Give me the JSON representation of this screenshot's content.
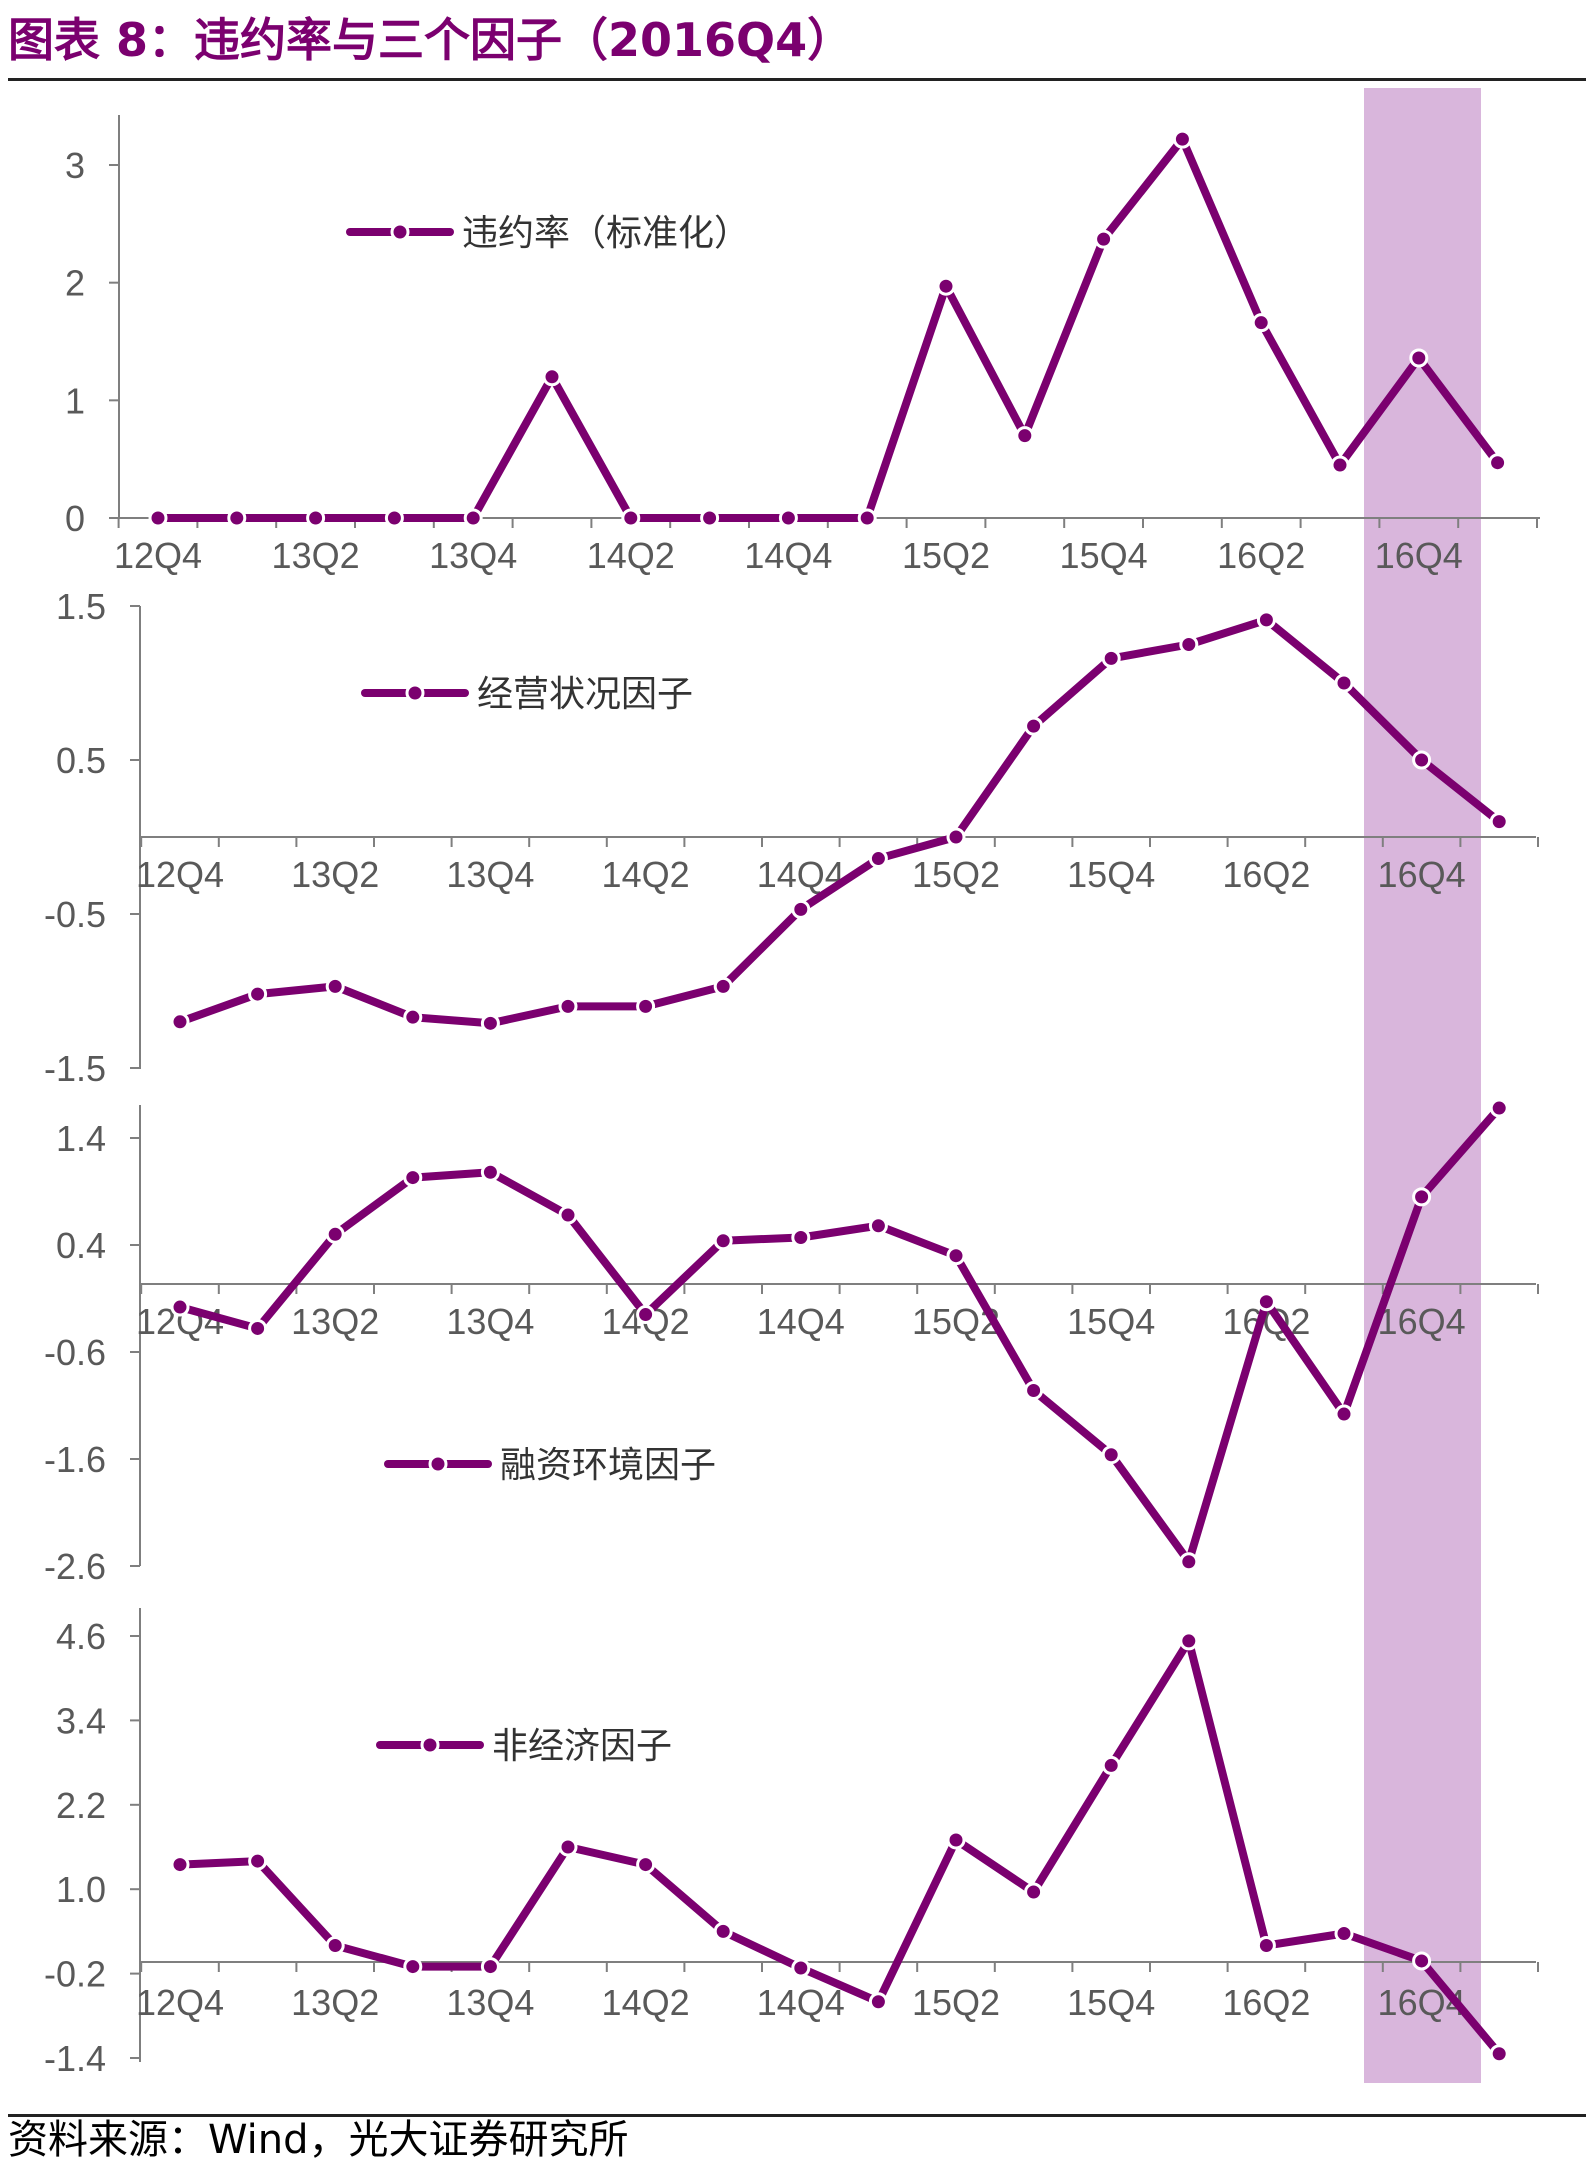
{
  "title": "图表 8：违约率与三个因子（2016Q4）",
  "source": "资料来源：Wind，光大证券研究所",
  "colors": {
    "line": "#7B006F",
    "highlight": "#D9B6DC",
    "axis": "#7f7f7f",
    "title": "#7B006F"
  },
  "chart_data": [
    {
      "type": "line",
      "series": [
        {
          "name": "违约率（标准化）",
          "values": [
            0,
            0,
            0,
            0,
            0,
            1.2,
            0,
            0,
            0,
            0,
            1.97,
            0.7,
            2.37,
            3.22,
            1.66,
            0.45,
            1.36,
            0.47
          ]
        }
      ],
      "x_tick_labels": [
        "12Q4",
        "13Q2",
        "13Q4",
        "14Q2",
        "14Q4",
        "15Q2",
        "15Q4",
        "16Q2",
        "16Q4"
      ],
      "y_ticks": [
        0,
        1,
        2,
        3
      ],
      "ylim": [
        0,
        3.5
      ],
      "highlight": "2016Q4"
    },
    {
      "type": "line",
      "series": [
        {
          "name": "经营状况因子",
          "values": [
            -1.2,
            -1.02,
            -0.97,
            -1.17,
            -1.21,
            -1.1,
            -1.1,
            -0.97,
            -0.47,
            -0.14,
            0,
            0.72,
            1.16,
            1.25,
            1.41,
            1.0,
            0.5,
            0.1
          ]
        }
      ],
      "x_tick_labels": [
        "12Q4",
        "13Q2",
        "13Q4",
        "14Q2",
        "14Q4",
        "15Q2",
        "15Q4",
        "16Q2",
        "16Q4"
      ],
      "y_ticks": [
        1.5,
        0.5,
        -0.5,
        -1.5
      ],
      "ylim": [
        -1.5,
        1.5
      ],
      "highlight": "2016Q4"
    },
    {
      "type": "line",
      "series": [
        {
          "name": "融资环境因子",
          "values": [
            -0.18,
            -0.38,
            0.5,
            1.03,
            1.08,
            0.68,
            -0.25,
            0.44,
            0.47,
            0.58,
            0.3,
            -0.96,
            -1.56,
            -2.56,
            -0.13,
            -1.18,
            0.85,
            1.68
          ]
        }
      ],
      "x_tick_labels": [
        "12Q4",
        "13Q2",
        "13Q4",
        "14Q2",
        "14Q4",
        "15Q2",
        "15Q4",
        "16Q2",
        "16Q4"
      ],
      "y_ticks": [
        1.4,
        0.4,
        -0.6,
        -1.6,
        -2.6
      ],
      "ylim": [
        -2.6,
        1.7
      ],
      "highlight": "2016Q4"
    },
    {
      "type": "line",
      "series": [
        {
          "name": "非经济因子",
          "values": [
            1.35,
            1.4,
            0.2,
            -0.1,
            -0.1,
            1.6,
            1.35,
            0.4,
            -0.12,
            -0.6,
            1.7,
            0.96,
            2.76,
            4.53,
            0.2,
            0.37,
            -0.02,
            -1.34
          ]
        }
      ],
      "x_tick_labels": [
        "12Q4",
        "13Q2",
        "13Q4",
        "14Q2",
        "14Q4",
        "15Q2",
        "15Q4",
        "16Q2",
        "16Q4"
      ],
      "y_ticks": [
        4.6,
        3.4,
        2.2,
        1.0,
        -0.2,
        -1.4
      ],
      "ylim": [
        -1.4,
        4.6
      ],
      "highlight": "2016Q4"
    }
  ]
}
